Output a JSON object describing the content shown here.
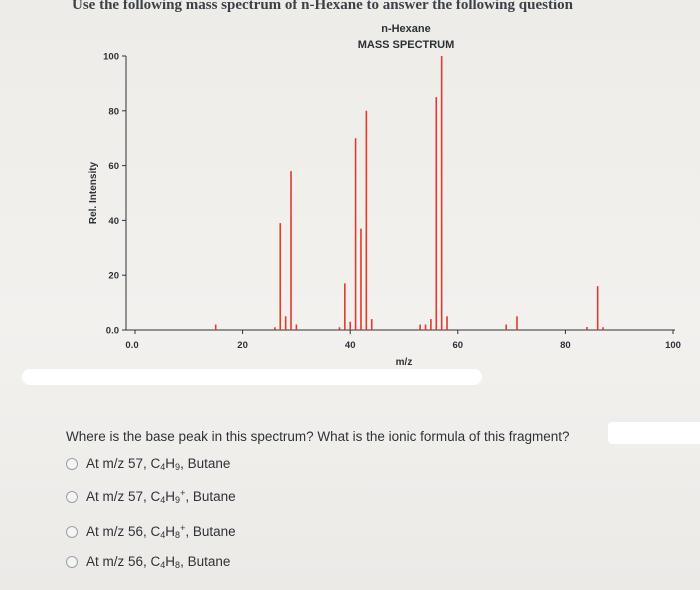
{
  "heading": "Use the following mass spectrum of n-Hexane to answer the following question",
  "chart_data": {
    "type": "bar",
    "title": "n-Hexane",
    "subtitle": "MASS SPECTRUM",
    "xlabel": "m/z",
    "ylabel": "Rel. Intensity",
    "xlim": [
      0,
      100
    ],
    "ylim": [
      0,
      100
    ],
    "x_ticks": [
      "0.0",
      "20",
      "40",
      "60",
      "80",
      "100"
    ],
    "y_ticks": [
      "0.0",
      "20",
      "40",
      "60",
      "80",
      "100"
    ],
    "peaks": [
      {
        "x": 15,
        "y": 2
      },
      {
        "x": 26,
        "y": 1
      },
      {
        "x": 27,
        "y": 39
      },
      {
        "x": 28,
        "y": 5
      },
      {
        "x": 29,
        "y": 58
      },
      {
        "x": 30,
        "y": 2
      },
      {
        "x": 38,
        "y": 1
      },
      {
        "x": 39,
        "y": 17
      },
      {
        "x": 40,
        "y": 3
      },
      {
        "x": 41,
        "y": 70
      },
      {
        "x": 42,
        "y": 37
      },
      {
        "x": 43,
        "y": 80
      },
      {
        "x": 44,
        "y": 4
      },
      {
        "x": 53,
        "y": 2
      },
      {
        "x": 54,
        "y": 2
      },
      {
        "x": 55,
        "y": 4
      },
      {
        "x": 56,
        "y": 85
      },
      {
        "x": 57,
        "y": 100
      },
      {
        "x": 58,
        "y": 5
      },
      {
        "x": 69,
        "y": 2
      },
      {
        "x": 71,
        "y": 5
      },
      {
        "x": 84,
        "y": 0
      },
      {
        "x": 86,
        "y": 16
      },
      {
        "x": 87,
        "y": 1
      }
    ]
  },
  "question": "Where is the base peak in this spectrum? What is the ionic formula of this fragment?",
  "options": [
    {
      "prefix": "At m/z 57, C",
      "c": "4",
      "h": "H",
      "hsub": "9",
      "charge": "",
      "suffix": ", Butane"
    },
    {
      "prefix": "At m/z 57, C",
      "c": "4",
      "h": "H",
      "hsub": "9",
      "charge": "+",
      "suffix": ", Butane"
    },
    {
      "prefix": "At m/z 56, C",
      "c": "4",
      "h": "H",
      "hsub": "8",
      "charge": "+",
      "suffix": ", Butane"
    },
    {
      "prefix": "At m/z 56, C",
      "c": "4",
      "h": "H",
      "hsub": "8",
      "charge": "",
      "suffix": ", Butane"
    }
  ],
  "colors": {
    "peak": "#e23a2c",
    "axis": "#2f3238",
    "text": "#2f3238"
  }
}
